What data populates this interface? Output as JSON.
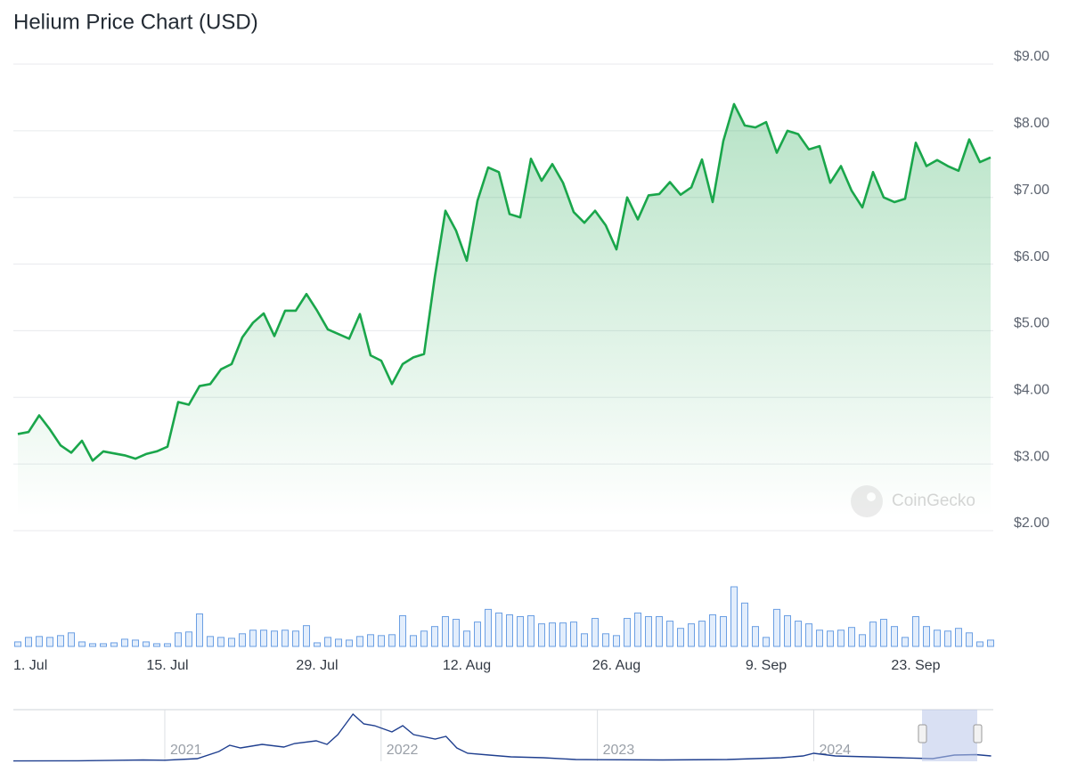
{
  "chart_data": [
    {
      "type": "line",
      "title": "Helium Price Chart (USD)",
      "watermark": "CoinGecko",
      "color": "#1aa64b",
      "volume_color": "#6b9fe3",
      "categories": [
        "1. Jul",
        "2. Jul",
        "3. Jul",
        "4. Jul",
        "5. Jul",
        "6. Jul",
        "7. Jul",
        "8. Jul",
        "9. Jul",
        "10. Jul",
        "11. Jul",
        "12. Jul",
        "13. Jul",
        "14. Jul",
        "15. Jul",
        "16. Jul",
        "17. Jul",
        "18. Jul",
        "19. Jul",
        "20. Jul",
        "21. Jul",
        "22. Jul",
        "23. Jul",
        "24. Jul",
        "25. Jul",
        "26. Jul",
        "27. Jul",
        "28. Jul",
        "29. Jul",
        "30. Jul",
        "31. Jul",
        "1. Aug",
        "2. Aug",
        "3. Aug",
        "4. Aug",
        "5. Aug",
        "6. Aug",
        "7. Aug",
        "8. Aug",
        "9. Aug",
        "10. Aug",
        "11. Aug",
        "12. Aug",
        "13. Aug",
        "14. Aug",
        "15. Aug",
        "16. Aug",
        "17. Aug",
        "18. Aug",
        "19. Aug",
        "20. Aug",
        "21. Aug",
        "22. Aug",
        "23. Aug",
        "24. Aug",
        "25. Aug",
        "26. Aug",
        "27. Aug",
        "28. Aug",
        "29. Aug",
        "30. Aug",
        "31. Aug",
        "1. Sep",
        "2. Sep",
        "3. Sep",
        "4. Sep",
        "5. Sep",
        "6. Sep",
        "7. Sep",
        "8. Sep",
        "9. Sep",
        "10. Sep",
        "11. Sep",
        "12. Sep",
        "13. Sep",
        "14. Sep",
        "15. Sep",
        "16. Sep",
        "17. Sep",
        "18. Sep",
        "19. Sep",
        "20. Sep",
        "21. Sep",
        "22. Sep",
        "23. Sep",
        "24. Sep",
        "25. Sep",
        "26. Sep",
        "27. Sep",
        "28. Sep",
        "29. Sep",
        "30. Sep"
      ],
      "values": [
        3.45,
        3.48,
        3.73,
        3.52,
        3.28,
        3.17,
        3.35,
        3.05,
        3.19,
        3.16,
        3.13,
        3.08,
        3.15,
        3.19,
        3.26,
        3.93,
        3.89,
        4.17,
        4.2,
        4.42,
        4.5,
        4.9,
        5.12,
        5.26,
        4.92,
        5.3,
        5.3,
        5.55,
        5.3,
        5.02,
        4.95,
        4.88,
        5.25,
        4.63,
        4.55,
        4.2,
        4.5,
        4.6,
        4.65,
        5.8,
        6.8,
        6.5,
        6.05,
        6.95,
        7.45,
        7.38,
        6.75,
        6.7,
        7.58,
        7.25,
        7.5,
        7.22,
        6.78,
        6.62,
        6.8,
        6.58,
        6.22,
        7.0,
        6.67,
        7.03,
        7.05,
        7.23,
        7.04,
        7.15,
        7.57,
        6.93,
        7.85,
        8.4,
        8.08,
        8.05,
        8.13,
        7.67,
        8.0,
        7.95,
        7.72,
        7.77,
        7.22,
        7.47,
        7.1,
        6.85,
        7.38,
        7.0,
        6.93,
        6.98,
        7.82,
        7.47,
        7.56,
        7.47,
        7.4,
        7.87,
        7.53,
        7.6
      ],
      "volume": [
        5,
        10,
        11,
        10,
        12,
        15,
        5,
        3,
        3,
        4,
        8,
        7,
        5,
        3,
        3,
        15,
        16,
        36,
        11,
        10,
        9,
        14,
        18,
        18,
        17,
        18,
        17,
        23,
        4,
        10,
        8,
        7,
        11,
        13,
        12,
        13,
        34,
        12,
        17,
        22,
        33,
        30,
        17,
        27,
        41,
        37,
        35,
        33,
        34,
        25,
        26,
        26,
        27,
        14,
        31,
        14,
        12,
        31,
        37,
        33,
        33,
        28,
        20,
        25,
        28,
        35,
        33,
        66,
        48,
        22,
        10,
        41,
        34,
        28,
        25,
        18,
        17,
        18,
        21,
        13,
        27,
        30,
        22,
        10,
        33,
        22,
        18,
        17,
        20,
        15,
        5,
        7
      ],
      "ylim": [
        2,
        9
      ],
      "yticks": [
        {
          "value": 9,
          "label": "$9.00"
        },
        {
          "value": 8,
          "label": "$8.00"
        },
        {
          "value": 7,
          "label": "$7.00"
        },
        {
          "value": 6,
          "label": "$6.00"
        },
        {
          "value": 5,
          "label": "$5.00"
        },
        {
          "value": 4,
          "label": "$4.00"
        },
        {
          "value": 3,
          "label": "$3.00"
        },
        {
          "value": 2,
          "label": "$2.00"
        }
      ],
      "xticks": [
        "1. Jul",
        "15. Jul",
        "29. Jul",
        "12. Aug",
        "26. Aug",
        "9. Sep",
        "23. Sep"
      ],
      "grid": true
    },
    {
      "type": "line",
      "color": "#1f3f8f",
      "x": [
        2020.3,
        2020.6,
        2020.9,
        2021.0,
        2021.15,
        2021.25,
        2021.3,
        2021.35,
        2021.45,
        2021.55,
        2021.6,
        2021.7,
        2021.75,
        2021.8,
        2021.87,
        2021.92,
        2021.97,
        2022.05,
        2022.1,
        2022.15,
        2022.25,
        2022.3,
        2022.35,
        2022.4,
        2022.5,
        2022.6,
        2022.75,
        2022.9,
        2023.0,
        2023.3,
        2023.6,
        2023.85,
        2023.95,
        2024.0,
        2024.1,
        2024.25,
        2024.4,
        2024.55,
        2024.65,
        2024.75,
        2024.82
      ],
      "values": [
        0.4,
        0.6,
        1.5,
        1.2,
        3,
        11,
        18,
        15,
        19,
        16,
        20,
        23,
        19,
        30,
        53,
        42,
        40,
        33,
        40,
        30,
        25,
        28,
        15,
        9,
        7,
        5,
        4,
        2,
        1.8,
        1.5,
        2,
        4,
        6,
        9,
        6,
        5,
        4,
        3,
        7,
        7.5,
        6
      ],
      "xlim": [
        2020.3,
        2024.83
      ],
      "ylim": [
        0,
        58
      ],
      "xticks": [
        {
          "value": 2021,
          "label": "2021"
        },
        {
          "value": 2022,
          "label": "2022"
        },
        {
          "value": 2023,
          "label": "2023"
        },
        {
          "value": 2024,
          "label": "2024"
        }
      ]
    }
  ]
}
